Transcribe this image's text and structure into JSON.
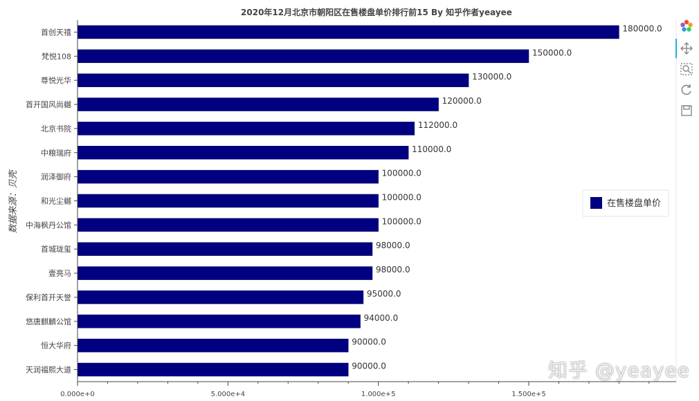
{
  "chart_data": {
    "type": "bar",
    "orientation": "horizontal",
    "title": "2020年12月北京市朝阳区在售楼盘单价排行前15 By 知乎作者yeayee",
    "ylabel": "数据来源：贝壳",
    "xlabel": "",
    "categories": [
      "首创天禧",
      "梵悦108",
      "尊悦光华",
      "首开国风尚樾",
      "北京书院",
      "中粮瑞府",
      "润泽御府",
      "和光尘樾",
      "中海枫丹公馆",
      "首城珑玺",
      "壹亮马",
      "保利首开天誉",
      "悠唐麒麟公馆",
      "恒大华府",
      "天润福熙大道"
    ],
    "series": [
      {
        "name": "在售楼盘单价",
        "values": [
          180000,
          150000,
          130000,
          120000,
          112000,
          110000,
          100000,
          100000,
          100000,
          98000,
          98000,
          95000,
          94000,
          90000,
          90000
        ],
        "labels": [
          "180000.0",
          "150000.0",
          "130000.0",
          "120000.0",
          "112000.0",
          "110000.0",
          "100000.0",
          "100000.0",
          "100000.0",
          "98000.0",
          "98000.0",
          "95000.0",
          "94000.0",
          "90000.0",
          "90000.0"
        ]
      }
    ],
    "xlim": [
      0,
      200000
    ],
    "xticks": [
      0,
      50000,
      100000,
      150000
    ],
    "xtick_labels": [
      "0.000e+0",
      "5.000e+4",
      "1.000e+5",
      "1.500e+5"
    ],
    "legend_position": "right",
    "grid": false,
    "bar_color": "#000080"
  },
  "toolbar": {
    "icons": [
      "bokeh-logo-icon",
      "pan-icon",
      "box-zoom-icon",
      "reset-icon",
      "save-icon"
    ]
  },
  "watermark": "知乎 @yeayee"
}
